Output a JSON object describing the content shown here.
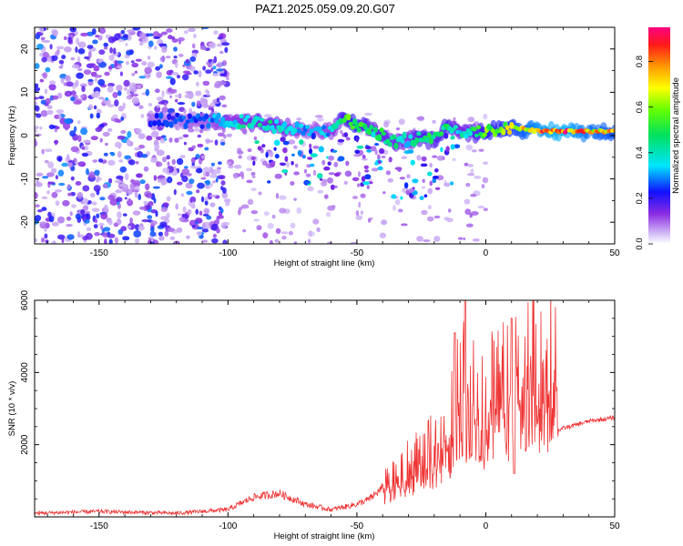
{
  "figure": {
    "title": "PAZ1.2025.059.09.20.G07"
  },
  "chart_data": [
    {
      "type": "heatmap",
      "xlabel": "Height of straight line (km)",
      "ylabel": "Frequency (Hz)",
      "xlim": [
        -175,
        50
      ],
      "ylim": [
        -25,
        25
      ],
      "xticks": [
        -150,
        -100,
        -50,
        0,
        50
      ],
      "yticks": [
        -20,
        -10,
        0,
        10,
        20
      ],
      "colorbar": {
        "label": "Normalized spectral amplitude",
        "range": [
          0,
          0.95
        ],
        "ticks": [
          0.0,
          0.2,
          0.4,
          0.6,
          0.8
        ],
        "colormap": "white-lavender-purple-blue-cyan-green-yellow-orange-red-magenta"
      },
      "ridge": {
        "x": [
          -130,
          -120,
          -110,
          -100,
          -90,
          -80,
          -70,
          -60,
          -55,
          -50,
          -45,
          -40,
          -35,
          -30,
          -25,
          -20,
          -15,
          -10,
          -5,
          0,
          10,
          20,
          30,
          40,
          50
        ],
        "y": [
          3.5,
          3.5,
          3.2,
          3.5,
          3.0,
          2.0,
          1.0,
          1.0,
          4.0,
          2.0,
          1.5,
          0.0,
          -1.5,
          -1.0,
          -0.5,
          -1.0,
          2.5,
          1.0,
          0.5,
          1.0,
          2.0,
          1.0,
          1.0,
          1.0,
          1.0
        ],
        "amplitude": [
          0.25,
          0.25,
          0.3,
          0.35,
          0.45,
          0.45,
          0.3,
          0.35,
          0.55,
          0.6,
          0.45,
          0.5,
          0.45,
          0.4,
          0.55,
          0.5,
          0.55,
          0.4,
          0.5,
          0.6,
          0.7,
          0.85,
          0.9,
          0.8,
          0.75
        ]
      },
      "noise_region": {
        "x_range": [
          -175,
          -100
        ],
        "y_range": [
          -25,
          25
        ],
        "amplitude": [
          0.05,
          0.3
        ]
      }
    },
    {
      "type": "line",
      "xlabel": "Height of straight line (km)",
      "ylabel": "SNR (10 * v/v)",
      "xlim": [
        -175,
        50
      ],
      "ylim": [
        0,
        6000
      ],
      "xticks": [
        -150,
        -100,
        -50,
        0,
        50
      ],
      "yticks": [
        2000,
        4000,
        6000
      ],
      "series": [
        {
          "color": "#ee3333",
          "x": [
            -175,
            -150,
            -120,
            -100,
            -90,
            -80,
            -70,
            -60,
            -50,
            -45,
            -40,
            -35,
            -30,
            -25,
            -20,
            -15,
            -12,
            -10,
            -8,
            -5,
            0,
            5,
            10,
            15,
            20,
            25,
            27,
            28,
            30,
            35,
            40,
            45,
            50
          ],
          "y": [
            100,
            150,
            100,
            200,
            550,
            650,
            350,
            200,
            350,
            500,
            800,
            1100,
            1400,
            1600,
            1900,
            2400,
            3000,
            3500,
            3700,
            3400,
            3200,
            3500,
            3800,
            4100,
            4300,
            4500,
            4700,
            2400,
            2450,
            2550,
            2650,
            2700,
            2750
          ],
          "spikes": [
            {
              "x": -12,
              "y": 5100
            },
            {
              "x": -8,
              "y": 6000
            },
            {
              "x": 10,
              "y": 5500
            },
            {
              "x": 11,
              "y": 1200
            }
          ]
        }
      ]
    }
  ]
}
